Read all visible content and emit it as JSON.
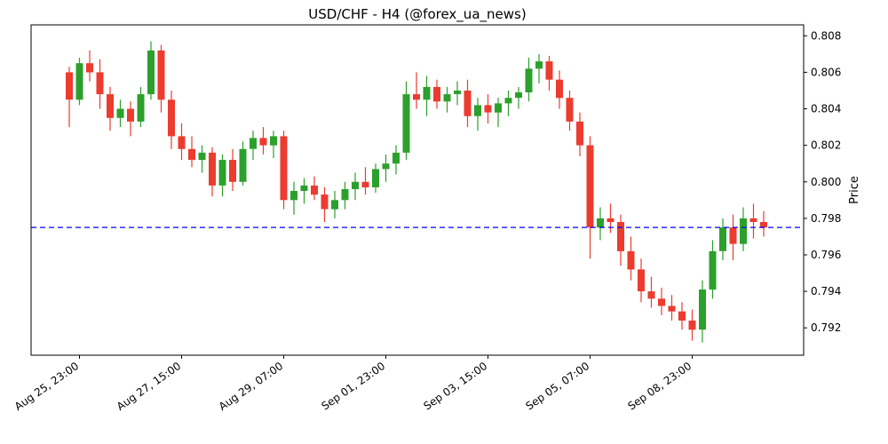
{
  "title": "USD/CHF - H4 (@forex_ua_news)",
  "chart_data": {
    "type": "candlestick",
    "title": "USD/CHF - H4 (@forex_ua_news)",
    "symbol": "USD/CHF",
    "timeframe": "H4",
    "ylabel": "Price",
    "ylim": [
      0.7905,
      0.8086
    ],
    "yticks": [
      0.792,
      0.794,
      0.796,
      0.798,
      0.8,
      0.802,
      0.804,
      0.806,
      0.808
    ],
    "xticks": [
      {
        "i": 1,
        "label": "Aug 25, 23:00"
      },
      {
        "i": 11,
        "label": "Aug 27, 15:00"
      },
      {
        "i": 21,
        "label": "Aug 29, 07:00"
      },
      {
        "i": 31,
        "label": "Sep 01, 23:00"
      },
      {
        "i": 41,
        "label": "Sep 03, 15:00"
      },
      {
        "i": 51,
        "label": "Sep 05, 07:00"
      },
      {
        "i": 61,
        "label": "Sep 08, 23:00"
      }
    ],
    "hline": {
      "value": 0.7975,
      "color": "#0000ff",
      "style": "dashed"
    },
    "up_color": "#2ca02c",
    "down_color": "#ec3b2f",
    "candles_format": [
      "open",
      "high",
      "low",
      "close"
    ],
    "candles": [
      [
        0.806,
        0.8063,
        0.803,
        0.8045
      ],
      [
        0.8045,
        0.8068,
        0.8042,
        0.8065
      ],
      [
        0.8065,
        0.8072,
        0.8055,
        0.806
      ],
      [
        0.806,
        0.8067,
        0.804,
        0.8048
      ],
      [
        0.8048,
        0.8052,
        0.8028,
        0.8035
      ],
      [
        0.8035,
        0.8045,
        0.803,
        0.804
      ],
      [
        0.804,
        0.8044,
        0.8025,
        0.8033
      ],
      [
        0.8033,
        0.8052,
        0.803,
        0.8048
      ],
      [
        0.8048,
        0.8077,
        0.8045,
        0.8072
      ],
      [
        0.8072,
        0.8075,
        0.8038,
        0.8045
      ],
      [
        0.8045,
        0.805,
        0.8018,
        0.8025
      ],
      [
        0.8025,
        0.8032,
        0.8012,
        0.8018
      ],
      [
        0.8018,
        0.8025,
        0.8008,
        0.8012
      ],
      [
        0.8012,
        0.802,
        0.8005,
        0.8016
      ],
      [
        0.8016,
        0.8019,
        0.7992,
        0.7998
      ],
      [
        0.7998,
        0.8015,
        0.7992,
        0.8012
      ],
      [
        0.8012,
        0.8018,
        0.7995,
        0.8
      ],
      [
        0.8,
        0.8022,
        0.7998,
        0.8018
      ],
      [
        0.8018,
        0.8028,
        0.8012,
        0.8024
      ],
      [
        0.8024,
        0.803,
        0.8015,
        0.802
      ],
      [
        0.802,
        0.8028,
        0.8013,
        0.8025
      ],
      [
        0.8025,
        0.8028,
        0.7985,
        0.799
      ],
      [
        0.799,
        0.8,
        0.7982,
        0.7995
      ],
      [
        0.7995,
        0.8002,
        0.7988,
        0.7998
      ],
      [
        0.7998,
        0.8003,
        0.799,
        0.7993
      ],
      [
        0.7993,
        0.7997,
        0.7978,
        0.7985
      ],
      [
        0.7985,
        0.7995,
        0.798,
        0.799
      ],
      [
        0.799,
        0.8,
        0.7985,
        0.7996
      ],
      [
        0.7996,
        0.8005,
        0.799,
        0.8
      ],
      [
        0.8,
        0.8008,
        0.7993,
        0.7997
      ],
      [
        0.7997,
        0.801,
        0.7994,
        0.8007
      ],
      [
        0.8007,
        0.8015,
        0.8,
        0.801
      ],
      [
        0.801,
        0.802,
        0.8004,
        0.8016
      ],
      [
        0.8016,
        0.8055,
        0.8012,
        0.8048
      ],
      [
        0.8048,
        0.806,
        0.804,
        0.8045
      ],
      [
        0.8045,
        0.8058,
        0.8036,
        0.8052
      ],
      [
        0.8052,
        0.8056,
        0.804,
        0.8044
      ],
      [
        0.8044,
        0.8052,
        0.8038,
        0.8048
      ],
      [
        0.8048,
        0.8055,
        0.8042,
        0.805
      ],
      [
        0.805,
        0.8056,
        0.803,
        0.8036
      ],
      [
        0.8036,
        0.8046,
        0.8028,
        0.8042
      ],
      [
        0.8042,
        0.8048,
        0.8032,
        0.8038
      ],
      [
        0.8038,
        0.8046,
        0.803,
        0.8043
      ],
      [
        0.8043,
        0.805,
        0.8036,
        0.8046
      ],
      [
        0.8046,
        0.8052,
        0.804,
        0.8049
      ],
      [
        0.8049,
        0.8068,
        0.8044,
        0.8062
      ],
      [
        0.8062,
        0.807,
        0.8054,
        0.8066
      ],
      [
        0.8066,
        0.8069,
        0.805,
        0.8056
      ],
      [
        0.8056,
        0.8061,
        0.804,
        0.8046
      ],
      [
        0.8046,
        0.805,
        0.8028,
        0.8033
      ],
      [
        0.8033,
        0.8038,
        0.8014,
        0.802
      ],
      [
        0.802,
        0.8025,
        0.7958,
        0.7975
      ],
      [
        0.7975,
        0.7986,
        0.7968,
        0.798
      ],
      [
        0.798,
        0.7988,
        0.7972,
        0.7978
      ],
      [
        0.7978,
        0.7982,
        0.7954,
        0.7962
      ],
      [
        0.7962,
        0.797,
        0.7946,
        0.7952
      ],
      [
        0.7952,
        0.7958,
        0.7934,
        0.794
      ],
      [
        0.794,
        0.7948,
        0.7931,
        0.7936
      ],
      [
        0.7936,
        0.7942,
        0.7927,
        0.7932
      ],
      [
        0.7932,
        0.7938,
        0.7924,
        0.7929
      ],
      [
        0.7929,
        0.7934,
        0.7919,
        0.7924
      ],
      [
        0.7924,
        0.793,
        0.7913,
        0.7919
      ],
      [
        0.7919,
        0.7946,
        0.7912,
        0.7941
      ],
      [
        0.7941,
        0.7968,
        0.7936,
        0.7962
      ],
      [
        0.7962,
        0.798,
        0.7957,
        0.7975
      ],
      [
        0.7975,
        0.7982,
        0.7957,
        0.7966
      ],
      [
        0.7966,
        0.7986,
        0.7962,
        0.798
      ],
      [
        0.798,
        0.7988,
        0.7969,
        0.7978
      ],
      [
        0.7978,
        0.7984,
        0.797,
        0.7975
      ]
    ]
  }
}
